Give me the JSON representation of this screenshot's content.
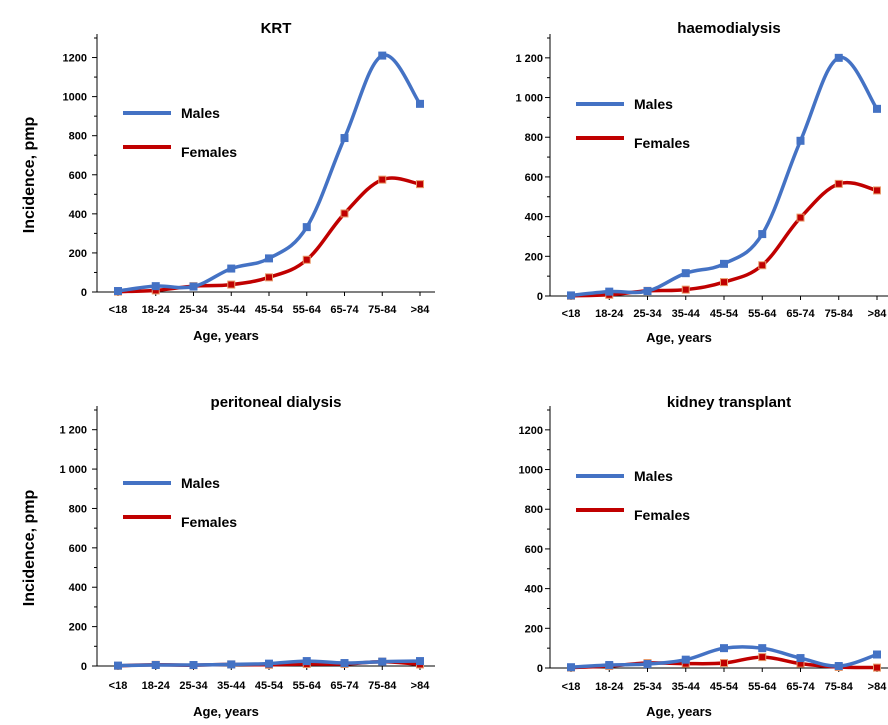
{
  "chart_data": [
    {
      "type": "line",
      "title": "KRT",
      "xlabel": "Age, years",
      "ylabel": "Incidence, pmp",
      "ylim": [
        0,
        1300
      ],
      "yticks": [
        "0",
        "200",
        "400",
        "600",
        "800",
        "1000",
        "1200"
      ],
      "categories": [
        "<18",
        "18-24",
        "25-34",
        "35-44",
        "45-54",
        "55-64",
        "65-74",
        "75-84",
        ">84"
      ],
      "legend_position": "upper-left",
      "series": [
        {
          "name": "Males",
          "color": "#4472c4",
          "values": [
            5,
            30,
            28,
            120,
            172,
            332,
            788,
            1210,
            963
          ]
        },
        {
          "name": "Females",
          "color": "#c00000",
          "values": [
            2,
            8,
            30,
            38,
            75,
            165,
            402,
            575,
            552
          ]
        }
      ]
    },
    {
      "type": "line",
      "title": "haemodialysis",
      "xlabel": "Age, years",
      "ylabel": "",
      "ylim": [
        0,
        1300
      ],
      "yticks": [
        "0",
        "200",
        "400",
        "600",
        "800",
        "1 000",
        "1 200"
      ],
      "categories": [
        "<18",
        "18-24",
        "25-34",
        "35-44",
        "45-54",
        "55-64",
        "65-74",
        "75-84",
        ">84"
      ],
      "legend_position": "upper-left",
      "series": [
        {
          "name": "Males",
          "color": "#4472c4",
          "values": [
            3,
            22,
            25,
            115,
            162,
            312,
            782,
            1200,
            943
          ]
        },
        {
          "name": "Females",
          "color": "#c00000",
          "values": [
            1,
            6,
            26,
            32,
            70,
            155,
            395,
            565,
            532
          ]
        }
      ]
    },
    {
      "type": "line",
      "title": "peritoneal dialysis",
      "xlabel": "Age, years",
      "ylabel": "Incidence, pmp",
      "ylim": [
        0,
        1300
      ],
      "yticks": [
        "0",
        "200",
        "400",
        "600",
        "800",
        "1 000",
        "1 200"
      ],
      "categories": [
        "<18",
        "18-24",
        "25-34",
        "35-44",
        "45-54",
        "55-64",
        "65-74",
        "75-84",
        ">84"
      ],
      "legend_position": "upper-left",
      "series": [
        {
          "name": "Males",
          "color": "#4472c4",
          "values": [
            2,
            5,
            5,
            8,
            12,
            25,
            15,
            22,
            25
          ]
        },
        {
          "name": "Females",
          "color": "#c00000",
          "values": [
            1,
            6,
            4,
            8,
            6,
            10,
            10,
            22,
            8
          ]
        }
      ]
    },
    {
      "type": "line",
      "title": "kidney transplant",
      "xlabel": "Age, years",
      "ylabel": "",
      "ylim": [
        0,
        1300
      ],
      "yticks": [
        "0",
        "200",
        "400",
        "600",
        "800",
        "1000",
        "1200"
      ],
      "categories": [
        "<18",
        "18-24",
        "25-34",
        "35-44",
        "45-54",
        "55-64",
        "65-74",
        "75-84",
        ">84"
      ],
      "legend_position": "upper-left",
      "series": [
        {
          "name": "Males",
          "color": "#4472c4",
          "values": [
            4,
            15,
            20,
            42,
            100,
            100,
            50,
            10,
            68
          ]
        },
        {
          "name": "Females",
          "color": "#c00000",
          "values": [
            2,
            10,
            25,
            22,
            25,
            55,
            22,
            5,
            2
          ]
        }
      ]
    }
  ]
}
